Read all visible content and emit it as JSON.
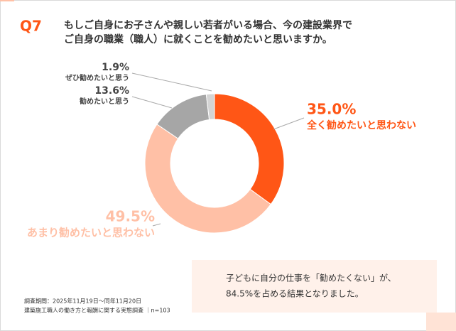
{
  "chart_data": {
    "type": "pie",
    "question_number": "Q7",
    "title_lines": [
      "もしご自身にお子さんや親しい若者がいる場合、今の建設業界で",
      "ご自身の職業（職人）に就くことを勧めたいと思いますか。"
    ],
    "categories": [
      "全く勧めたいと思わない",
      "あまり勧めたいと思わない",
      "勧めたいと思う",
      "ぜひ勧めたいと思う"
    ],
    "values": [
      35.0,
      49.5,
      13.6,
      1.9
    ],
    "value_labels": [
      "35.0%",
      "49.5%",
      "13.6%",
      "1.9%"
    ],
    "colors": [
      "#ff5616",
      "#ffc0a6",
      "#a6a6a6",
      "#d4d4d4"
    ],
    "callout_lines": [
      "子どもに自分の仕事を「勧めたくない」が、",
      "84.5%を占める結果となりました。"
    ],
    "notes": [
      "調査期間：2025年11月19日～同年11月20日",
      "建築施工職人の働き方と報酬に関する実態調査 ｜n=103"
    ]
  }
}
